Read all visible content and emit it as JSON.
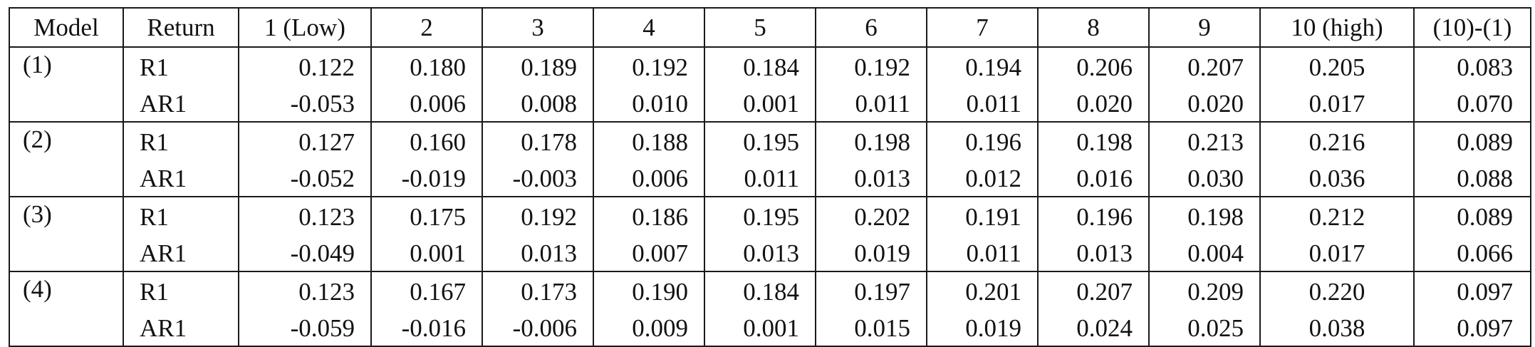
{
  "table": {
    "headers": [
      "Model",
      "Return",
      "1 (Low)",
      "2",
      "3",
      "4",
      "5",
      "6",
      "7",
      "8",
      "9",
      "10 (high)",
      "(10)-(1)"
    ],
    "groups": [
      {
        "model": "(1)",
        "rows": [
          {
            "return": "R1",
            "values": [
              "0.122",
              "0.180",
              "0.189",
              "0.192",
              "0.184",
              "0.192",
              "0.194",
              "0.206",
              "0.207",
              "0.205",
              "0.083"
            ]
          },
          {
            "return": "AR1",
            "values": [
              "-0.053",
              "0.006",
              "0.008",
              "0.010",
              "0.001",
              "0.011",
              "0.011",
              "0.020",
              "0.020",
              "0.017",
              "0.070"
            ]
          }
        ]
      },
      {
        "model": "(2)",
        "rows": [
          {
            "return": "R1",
            "values": [
              "0.127",
              "0.160",
              "0.178",
              "0.188",
              "0.195",
              "0.198",
              "0.196",
              "0.198",
              "0.213",
              "0.216",
              "0.089"
            ]
          },
          {
            "return": "AR1",
            "values": [
              "-0.052",
              "-0.019",
              "-0.003",
              "0.006",
              "0.011",
              "0.013",
              "0.012",
              "0.016",
              "0.030",
              "0.036",
              "0.088"
            ]
          }
        ]
      },
      {
        "model": "(3)",
        "rows": [
          {
            "return": "R1",
            "values": [
              "0.123",
              "0.175",
              "0.192",
              "0.186",
              "0.195",
              "0.202",
              "0.191",
              "0.196",
              "0.198",
              "0.212",
              "0.089"
            ]
          },
          {
            "return": "AR1",
            "values": [
              "-0.049",
              "0.001",
              "0.013",
              "0.007",
              "0.013",
              "0.019",
              "0.011",
              "0.013",
              "0.004",
              "0.017",
              "0.066"
            ]
          }
        ]
      },
      {
        "model": "(4)",
        "rows": [
          {
            "return": "R1",
            "values": [
              "0.123",
              "0.167",
              "0.173",
              "0.190",
              "0.184",
              "0.197",
              "0.201",
              "0.207",
              "0.209",
              "0.220",
              "0.097"
            ]
          },
          {
            "return": "AR1",
            "values": [
              "-0.059",
              "-0.016",
              "-0.006",
              "0.009",
              "0.001",
              "0.015",
              "0.019",
              "0.024",
              "0.025",
              "0.038",
              "0.097"
            ]
          }
        ]
      }
    ]
  }
}
